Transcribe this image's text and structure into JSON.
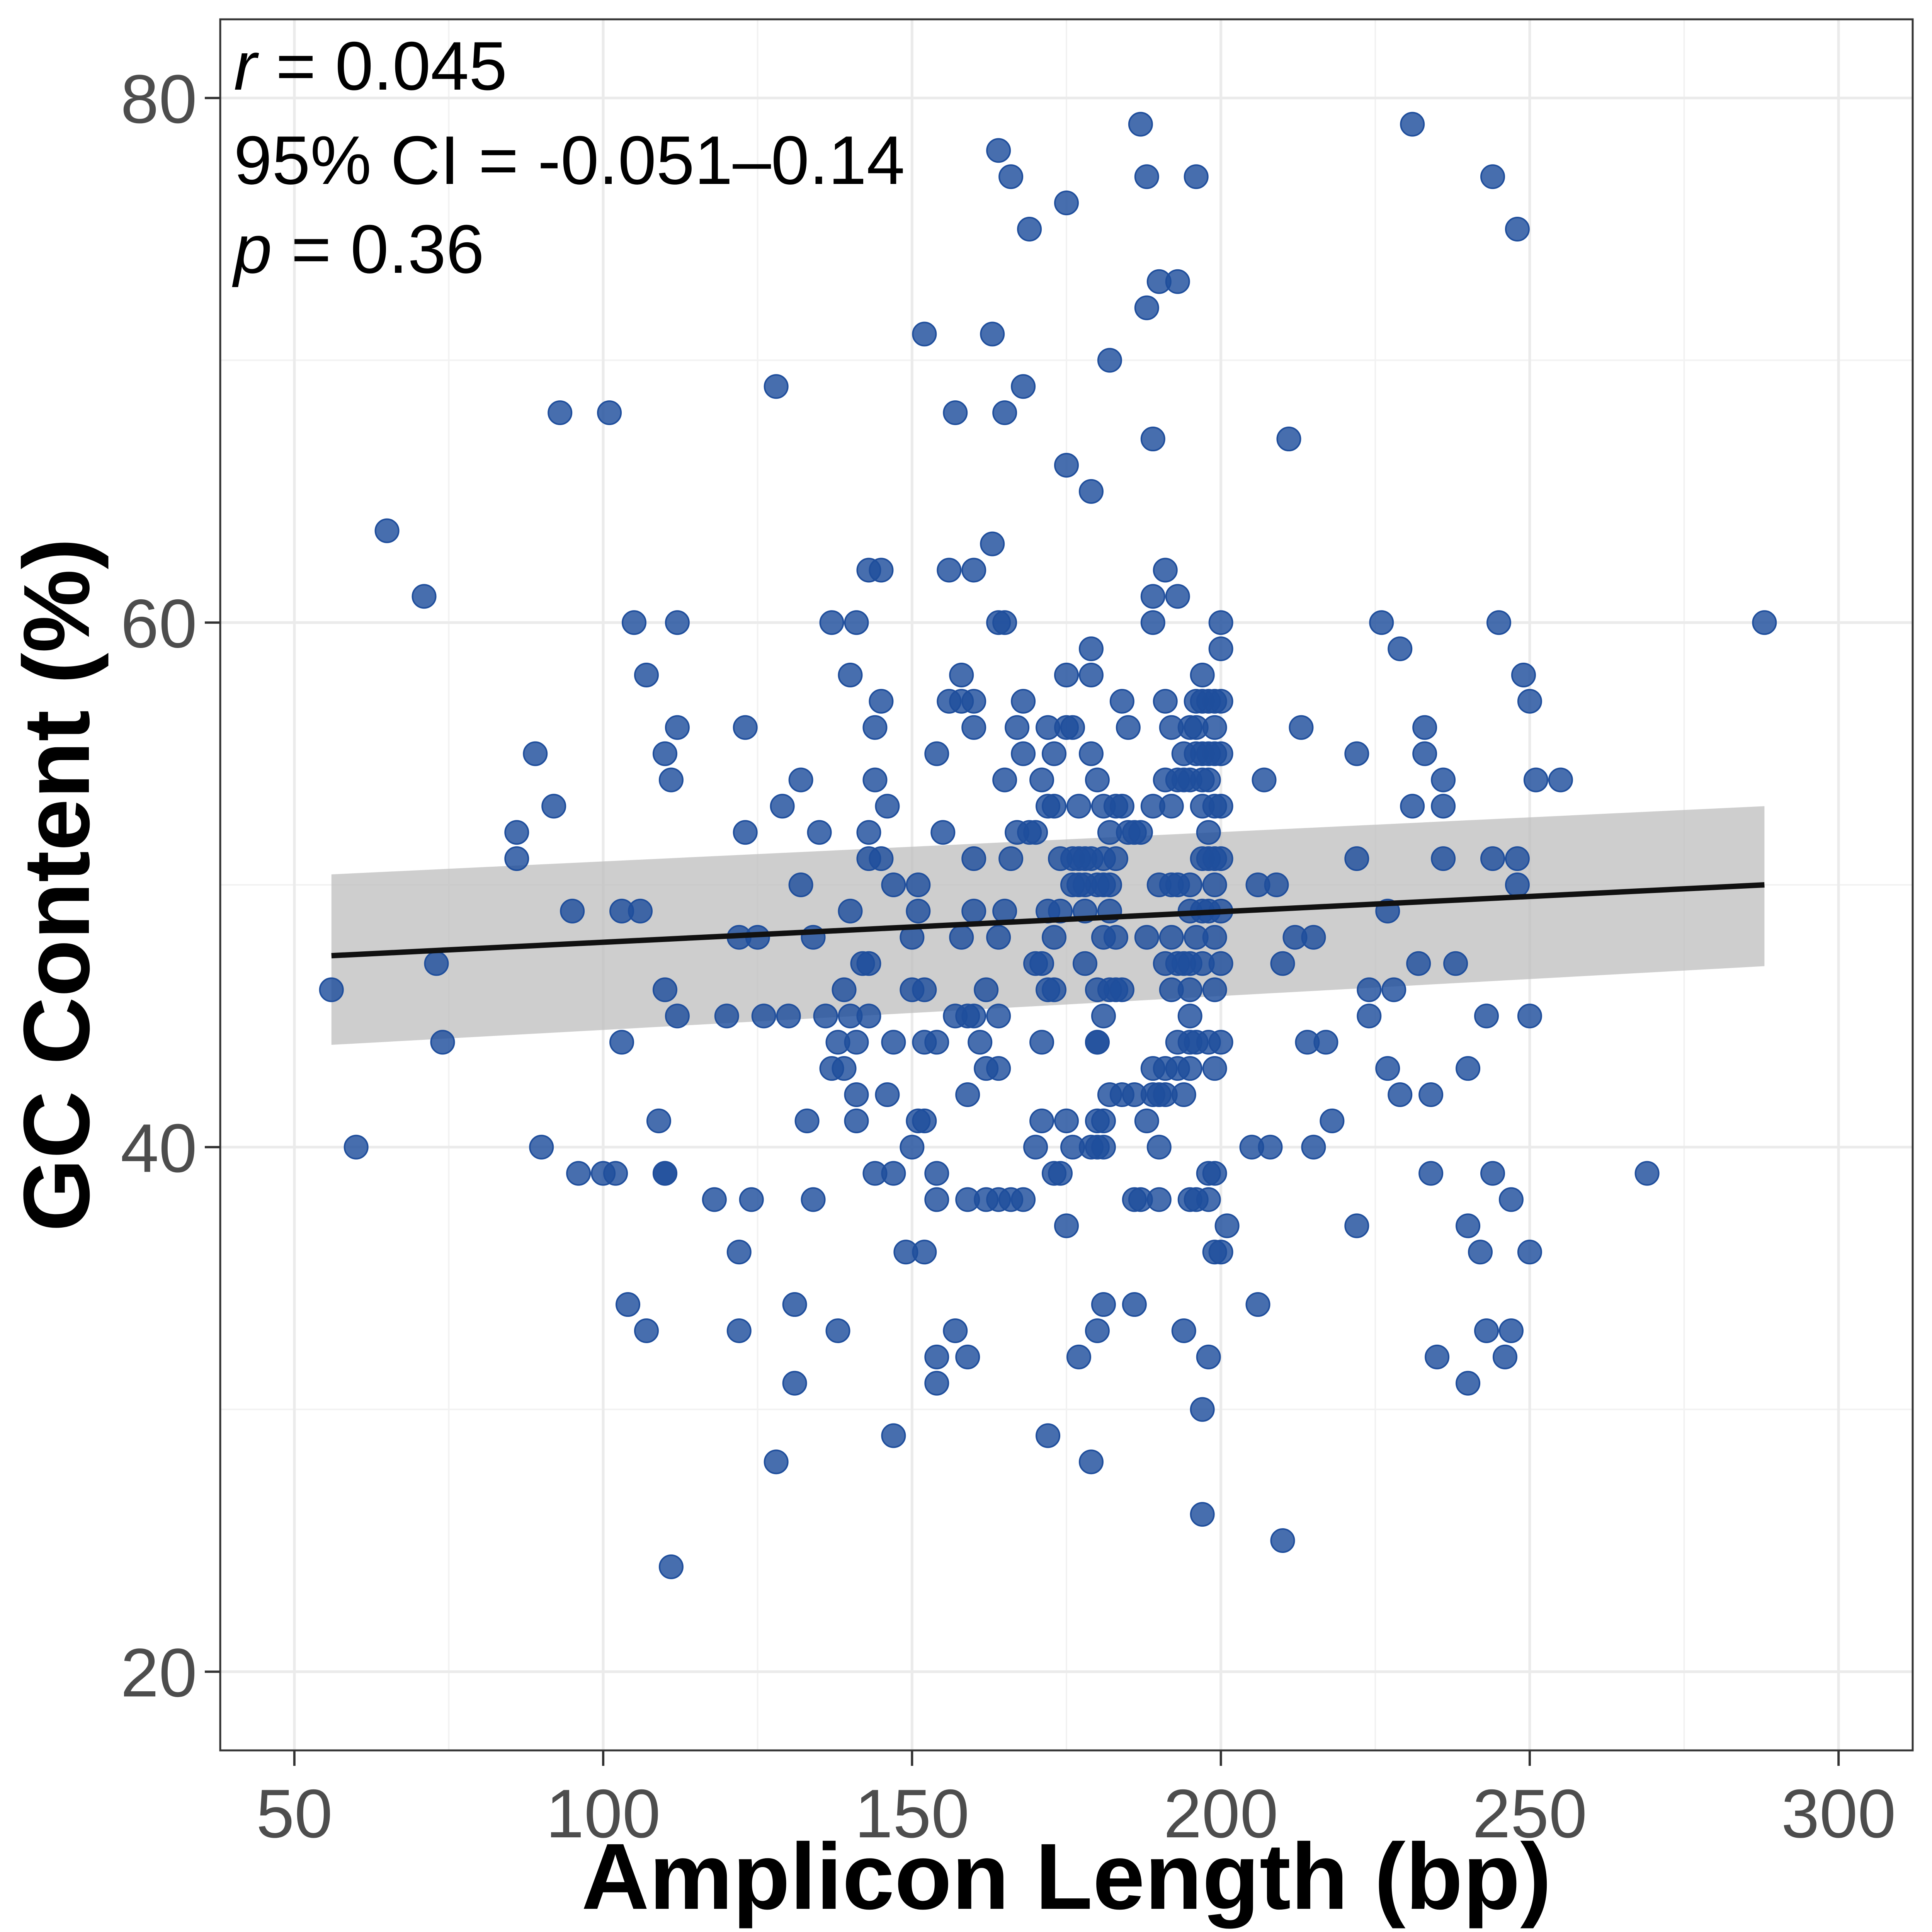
{
  "chart_data": {
    "type": "scatter",
    "xlabel": "Amplicon Length (bp)",
    "ylabel": "GC Content (%)",
    "xlim": [
      38,
      312
    ],
    "ylim": [
      17,
      83
    ],
    "x_ticks": [
      50,
      100,
      150,
      200,
      250,
      300
    ],
    "y_ticks": [
      20,
      40,
      60,
      80
    ],
    "grid": true,
    "annotations": {
      "r": {
        "symbol": "r",
        "text": " = 0.045"
      },
      "ci": {
        "text": "95% CI = -0.051–0.14"
      },
      "p": {
        "symbol": "p",
        "text": " = 0.36"
      }
    },
    "point_color": "#1f4e9c",
    "trend": {
      "color": "#111111",
      "band_color": "#bdbdbd",
      "x": [
        56,
        288
      ],
      "y": [
        47.3,
        50.0
      ],
      "band_lower": [
        43.9,
        46.9
      ],
      "band_upper": [
        50.4,
        53.0
      ]
    },
    "points": [
      [
        56,
        46
      ],
      [
        60,
        40
      ],
      [
        65,
        63.5
      ],
      [
        71,
        61
      ],
      [
        73,
        47
      ],
      [
        74,
        44
      ],
      [
        86,
        52
      ],
      [
        86,
        51
      ],
      [
        89,
        55
      ],
      [
        90,
        40
      ],
      [
        92,
        53
      ],
      [
        93,
        68
      ],
      [
        95,
        49
      ],
      [
        96,
        39
      ],
      [
        100,
        39
      ],
      [
        101,
        68
      ],
      [
        102,
        39
      ],
      [
        103,
        49
      ],
      [
        103,
        44
      ],
      [
        104,
        34
      ],
      [
        106,
        49
      ],
      [
        107,
        58
      ],
      [
        107,
        33
      ],
      [
        105,
        60
      ],
      [
        109,
        41
      ],
      [
        110,
        55
      ],
      [
        110,
        46
      ],
      [
        110,
        39
      ],
      [
        110,
        39
      ],
      [
        111,
        54
      ],
      [
        111,
        24
      ],
      [
        112,
        60
      ],
      [
        112,
        56
      ],
      [
        112,
        45
      ],
      [
        118,
        38
      ],
      [
        120,
        45
      ],
      [
        122,
        48
      ],
      [
        122,
        36
      ],
      [
        122,
        33
      ],
      [
        123,
        52
      ],
      [
        123,
        56
      ],
      [
        124,
        38
      ],
      [
        125,
        48
      ],
      [
        126,
        45
      ],
      [
        128,
        69
      ],
      [
        128,
        28
      ],
      [
        129,
        53
      ],
      [
        130,
        45
      ],
      [
        131,
        34
      ],
      [
        131,
        31
      ],
      [
        132,
        54
      ],
      [
        132,
        50
      ],
      [
        133,
        41
      ],
      [
        134,
        48
      ],
      [
        134,
        38
      ],
      [
        135,
        52
      ],
      [
        136,
        45
      ],
      [
        137,
        60
      ],
      [
        137,
        43
      ],
      [
        138,
        44
      ],
      [
        138,
        33
      ],
      [
        139,
        43
      ],
      [
        139,
        46
      ],
      [
        140,
        49
      ],
      [
        140,
        58
      ],
      [
        140,
        45
      ],
      [
        141,
        60
      ],
      [
        141,
        42
      ],
      [
        141,
        41
      ],
      [
        141,
        44
      ],
      [
        142,
        47
      ],
      [
        143,
        62
      ],
      [
        143,
        52
      ],
      [
        143,
        51
      ],
      [
        143,
        47
      ],
      [
        143,
        45
      ],
      [
        144,
        54
      ],
      [
        144,
        39
      ],
      [
        144,
        56
      ],
      [
        145,
        62
      ],
      [
        145,
        57
      ],
      [
        145,
        51
      ],
      [
        146,
        53
      ],
      [
        146,
        42
      ],
      [
        147,
        50
      ],
      [
        147,
        44
      ],
      [
        147,
        39
      ],
      [
        147,
        29
      ],
      [
        149,
        36
      ],
      [
        150,
        48
      ],
      [
        150,
        46
      ],
      [
        150,
        40
      ],
      [
        151,
        50
      ],
      [
        151,
        49
      ],
      [
        151,
        41
      ],
      [
        152,
        71
      ],
      [
        152,
        46
      ],
      [
        152,
        44
      ],
      [
        152,
        41
      ],
      [
        152,
        36
      ],
      [
        154,
        55
      ],
      [
        154,
        44
      ],
      [
        154,
        39
      ],
      [
        154,
        38
      ],
      [
        154,
        32
      ],
      [
        154,
        31
      ],
      [
        155,
        52
      ],
      [
        156,
        62
      ],
      [
        156,
        57
      ],
      [
        157,
        68
      ],
      [
        157,
        45
      ],
      [
        157,
        33
      ],
      [
        158,
        58
      ],
      [
        158,
        57
      ],
      [
        158,
        48
      ],
      [
        159,
        45
      ],
      [
        159,
        42
      ],
      [
        159,
        38
      ],
      [
        159,
        32
      ],
      [
        160,
        62
      ],
      [
        160,
        57
      ],
      [
        160,
        56
      ],
      [
        160,
        51
      ],
      [
        160,
        49
      ],
      [
        160,
        45
      ],
      [
        161,
        44
      ],
      [
        162,
        46
      ],
      [
        162,
        43
      ],
      [
        162,
        38
      ],
      [
        163,
        71
      ],
      [
        163,
        63
      ],
      [
        164,
        60
      ],
      [
        164,
        48
      ],
      [
        164,
        45
      ],
      [
        164,
        43
      ],
      [
        164,
        38
      ],
      [
        164,
        78
      ],
      [
        165,
        68
      ],
      [
        165,
        60
      ],
      [
        165,
        54
      ],
      [
        165,
        49
      ],
      [
        166,
        77
      ],
      [
        166,
        51
      ],
      [
        166,
        38
      ],
      [
        167,
        56
      ],
      [
        167,
        52
      ],
      [
        168,
        57
      ],
      [
        168,
        55
      ],
      [
        168,
        69
      ],
      [
        168,
        38
      ],
      [
        169,
        75
      ],
      [
        169,
        52
      ],
      [
        170,
        52
      ],
      [
        170,
        47
      ],
      [
        170,
        40
      ],
      [
        171,
        54
      ],
      [
        171,
        47
      ],
      [
        171,
        41
      ],
      [
        171,
        44
      ],
      [
        172,
        56
      ],
      [
        172,
        53
      ],
      [
        172,
        49
      ],
      [
        172,
        46
      ],
      [
        172,
        29
      ],
      [
        173,
        55
      ],
      [
        173,
        53
      ],
      [
        173,
        48
      ],
      [
        173,
        46
      ],
      [
        173,
        39
      ],
      [
        174,
        51
      ],
      [
        174,
        49
      ],
      [
        174,
        39
      ],
      [
        175,
        76
      ],
      [
        175,
        66
      ],
      [
        175,
        58
      ],
      [
        175,
        56
      ],
      [
        175,
        41
      ],
      [
        175,
        37
      ],
      [
        176,
        56
      ],
      [
        176,
        50
      ],
      [
        176,
        51
      ],
      [
        176,
        40
      ],
      [
        177,
        53
      ],
      [
        177,
        50
      ],
      [
        177,
        51
      ],
      [
        177,
        32
      ],
      [
        178,
        51
      ],
      [
        178,
        50
      ],
      [
        178,
        49
      ],
      [
        178,
        47
      ],
      [
        179,
        65
      ],
      [
        179,
        59
      ],
      [
        179,
        58
      ],
      [
        179,
        55
      ],
      [
        179,
        51
      ],
      [
        179,
        40
      ],
      [
        179,
        28
      ],
      [
        180,
        54
      ],
      [
        180,
        50
      ],
      [
        180,
        46
      ],
      [
        180,
        44
      ],
      [
        180,
        44
      ],
      [
        180,
        40
      ],
      [
        180,
        41
      ],
      [
        180,
        33
      ],
      [
        181,
        53
      ],
      [
        181,
        51
      ],
      [
        181,
        50
      ],
      [
        181,
        48
      ],
      [
        181,
        45
      ],
      [
        181,
        41
      ],
      [
        181,
        40
      ],
      [
        181,
        34
      ],
      [
        182,
        70
      ],
      [
        182,
        52
      ],
      [
        182,
        50
      ],
      [
        182,
        49
      ],
      [
        182,
        46
      ],
      [
        182,
        42
      ],
      [
        183,
        53
      ],
      [
        183,
        51
      ],
      [
        183,
        48
      ],
      [
        183,
        46
      ],
      [
        184,
        57
      ],
      [
        184,
        53
      ],
      [
        184,
        46
      ],
      [
        184,
        42
      ],
      [
        185,
        56
      ],
      [
        185,
        52
      ],
      [
        186,
        52
      ],
      [
        186,
        42
      ],
      [
        186,
        38
      ],
      [
        186,
        34
      ],
      [
        187,
        79
      ],
      [
        187,
        52
      ],
      [
        187,
        38
      ],
      [
        188,
        72
      ],
      [
        188,
        77
      ],
      [
        188,
        48
      ],
      [
        188,
        41
      ],
      [
        189,
        67
      ],
      [
        189,
        61
      ],
      [
        189,
        60
      ],
      [
        189,
        53
      ],
      [
        189,
        43
      ],
      [
        189,
        42
      ],
      [
        190,
        73
      ],
      [
        190,
        50
      ],
      [
        190,
        40
      ],
      [
        190,
        42
      ],
      [
        190,
        38
      ],
      [
        191,
        62
      ],
      [
        191,
        57
      ],
      [
        191,
        54
      ],
      [
        191,
        47
      ],
      [
        191,
        43
      ],
      [
        191,
        42
      ],
      [
        192,
        56
      ],
      [
        192,
        53
      ],
      [
        192,
        50
      ],
      [
        192,
        48
      ],
      [
        192,
        46
      ],
      [
        193,
        73
      ],
      [
        193,
        61
      ],
      [
        193,
        54
      ],
      [
        193,
        50
      ],
      [
        193,
        47
      ],
      [
        193,
        44
      ],
      [
        193,
        43
      ],
      [
        194,
        55
      ],
      [
        194,
        54
      ],
      [
        194,
        47
      ],
      [
        194,
        42
      ],
      [
        194,
        33
      ],
      [
        195,
        56
      ],
      [
        195,
        54
      ],
      [
        195,
        50
      ],
      [
        195,
        49
      ],
      [
        195,
        47
      ],
      [
        195,
        46
      ],
      [
        195,
        45
      ],
      [
        195,
        44
      ],
      [
        195,
        43
      ],
      [
        195,
        38
      ],
      [
        196,
        77
      ],
      [
        196,
        57
      ],
      [
        196,
        56
      ],
      [
        196,
        55
      ],
      [
        196,
        48
      ],
      [
        196,
        44
      ],
      [
        196,
        38
      ],
      [
        197,
        58
      ],
      [
        197,
        57
      ],
      [
        197,
        55
      ],
      [
        197,
        54
      ],
      [
        197,
        53
      ],
      [
        197,
        51
      ],
      [
        197,
        49
      ],
      [
        197,
        47
      ],
      [
        197,
        30
      ],
      [
        197,
        26
      ],
      [
        198,
        57
      ],
      [
        198,
        55
      ],
      [
        198,
        54
      ],
      [
        198,
        52
      ],
      [
        198,
        51
      ],
      [
        198,
        49
      ],
      [
        198,
        44
      ],
      [
        198,
        39
      ],
      [
        198,
        38
      ],
      [
        198,
        32
      ],
      [
        199,
        57
      ],
      [
        199,
        56
      ],
      [
        199,
        55
      ],
      [
        199,
        53
      ],
      [
        199,
        51
      ],
      [
        199,
        50
      ],
      [
        199,
        48
      ],
      [
        199,
        46
      ],
      [
        199,
        43
      ],
      [
        199,
        39
      ],
      [
        199,
        36
      ],
      [
        200,
        60
      ],
      [
        200,
        59
      ],
      [
        200,
        57
      ],
      [
        200,
        55
      ],
      [
        200,
        53
      ],
      [
        200,
        51
      ],
      [
        200,
        49
      ],
      [
        200,
        47
      ],
      [
        200,
        44
      ],
      [
        200,
        36
      ],
      [
        201,
        37
      ],
      [
        205,
        40
      ],
      [
        206,
        34
      ],
      [
        206,
        50
      ],
      [
        207,
        54
      ],
      [
        208,
        40
      ],
      [
        209,
        50
      ],
      [
        210,
        47
      ],
      [
        210,
        25
      ],
      [
        211,
        67
      ],
      [
        212,
        48
      ],
      [
        213,
        56
      ],
      [
        214,
        44
      ],
      [
        215,
        48
      ],
      [
        215,
        40
      ],
      [
        217,
        44
      ],
      [
        218,
        41
      ],
      [
        222,
        55
      ],
      [
        222,
        51
      ],
      [
        222,
        37
      ],
      [
        224,
        46
      ],
      [
        224,
        45
      ],
      [
        226,
        60
      ],
      [
        227,
        49
      ],
      [
        227,
        43
      ],
      [
        228,
        46
      ],
      [
        229,
        59
      ],
      [
        229,
        42
      ],
      [
        231,
        79
      ],
      [
        231,
        53
      ],
      [
        232,
        47
      ],
      [
        233,
        56
      ],
      [
        233,
        55
      ],
      [
        234,
        42
      ],
      [
        234,
        39
      ],
      [
        235,
        32
      ],
      [
        236,
        54
      ],
      [
        236,
        53
      ],
      [
        236,
        51
      ],
      [
        238,
        47
      ],
      [
        240,
        43
      ],
      [
        240,
        37
      ],
      [
        240,
        31
      ],
      [
        242,
        36
      ],
      [
        243,
        45
      ],
      [
        243,
        33
      ],
      [
        244,
        77
      ],
      [
        244,
        51
      ],
      [
        244,
        39
      ],
      [
        245,
        60
      ],
      [
        246,
        32
      ],
      [
        247,
        38
      ],
      [
        247,
        33
      ],
      [
        248,
        75
      ],
      [
        248,
        51
      ],
      [
        248,
        50
      ],
      [
        249,
        58
      ],
      [
        250,
        57
      ],
      [
        250,
        45
      ],
      [
        250,
        36
      ],
      [
        251,
        54
      ],
      [
        255,
        54
      ],
      [
        269,
        39
      ],
      [
        288,
        60
      ]
    ]
  }
}
